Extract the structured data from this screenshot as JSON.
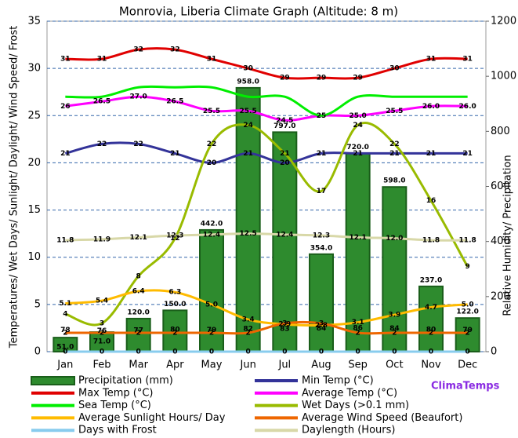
{
  "chart_data": {
    "type": "combo",
    "title": "Monrovia, Liberia Climate Graph (Altitude: 8 m)",
    "y_label": "Temperatures/ Wet Days/ Sunlight/ Daylight/ Wind Speed/ Frost",
    "y2_label": "Relative Humidity/ Precipitation",
    "brand": "ClimaTemps",
    "categories": [
      "Jan",
      "Feb",
      "Mar",
      "Apr",
      "May",
      "Jun",
      "Jul",
      "Aug",
      "Sep",
      "Oct",
      "Nov",
      "Dec"
    ],
    "ylim": [
      0,
      35
    ],
    "yticks": [
      0,
      5,
      10,
      15,
      20,
      25,
      30,
      35
    ],
    "y2lim": [
      0,
      1200
    ],
    "y2ticks": [
      0,
      200,
      400,
      600,
      800,
      1000,
      1200
    ],
    "grid": true,
    "series": [
      {
        "name": "Precipitation (mm)",
        "kind": "bar",
        "axis": "y2",
        "color": "#2e8b2e",
        "values": [
          51,
          71,
          120,
          150,
          442,
          958,
          797,
          354,
          720,
          598,
          237,
          122
        ],
        "value_labels": [
          "51.0",
          "71.0",
          "120.0",
          "150.0",
          "442.0",
          "958.0",
          "797.0",
          "354.0",
          "720.0",
          "598.0",
          "237.0",
          "122.0"
        ]
      },
      {
        "name": "Min Temp (°C)",
        "kind": "line",
        "color": "#333399",
        "values": [
          21,
          22,
          22,
          21,
          20,
          21,
          20,
          21,
          21,
          21,
          21,
          21
        ]
      },
      {
        "name": "Max Temp (°C)",
        "kind": "line",
        "color": "#e00000",
        "values": [
          31,
          31,
          32,
          32,
          31,
          30,
          29,
          29,
          29,
          30,
          31,
          31
        ]
      },
      {
        "name": "Average Temp (°C)",
        "kind": "line",
        "color": "#ff00ff",
        "values": [
          26,
          26.5,
          27,
          26.5,
          25.5,
          25.5,
          24.5,
          25,
          25,
          25.5,
          26,
          26
        ],
        "value_labels": [
          "26",
          "26.5",
          "27.0",
          "26.5",
          "25.5",
          "25.5",
          "24.5",
          "25",
          "25.0",
          "25.5",
          "26.0",
          "26.0"
        ]
      },
      {
        "name": "Sea Temp (°C)",
        "kind": "line",
        "color": "#00ee00",
        "show_labels": false,
        "values": [
          27,
          27,
          28,
          28,
          28,
          27,
          27,
          25,
          27,
          27,
          27,
          27
        ]
      },
      {
        "name": "Wet Days (>0.1 mm)",
        "kind": "line",
        "color": "#99bb00",
        "values": [
          4,
          3,
          8,
          12,
          22,
          24,
          21,
          17,
          24,
          22,
          16,
          9
        ]
      },
      {
        "name": "Average Sunlight Hours/ Day",
        "kind": "line",
        "color": "#ffbb00",
        "values": [
          5.1,
          5.4,
          6.4,
          6.3,
          5.0,
          3.4,
          2.9,
          2.8,
          3.1,
          3.9,
          4.7,
          5.0
        ],
        "value_labels": [
          "5.1",
          "5.4",
          "6.4",
          "6.3",
          "5.0",
          "3.4",
          "2.9",
          "2.8",
          "3.1",
          "3.9",
          "4.7",
          "5.0"
        ]
      },
      {
        "name": "Average Wind Speed (Beaufort)",
        "kind": "line",
        "color": "#ee6600",
        "values": [
          2,
          2,
          2,
          2,
          2,
          2,
          3,
          3,
          2,
          2,
          2,
          2
        ]
      },
      {
        "name": "Days with Frost",
        "kind": "line",
        "color": "#88ccee",
        "values": [
          0,
          0,
          0,
          0,
          0,
          0,
          0,
          0,
          0,
          0,
          0,
          0
        ]
      },
      {
        "name": "Daylength (Hours)",
        "kind": "line",
        "color": "#d8d8a8",
        "values": [
          11.8,
          11.9,
          12.1,
          12.3,
          12.4,
          12.5,
          12.4,
          12.3,
          12.1,
          12.0,
          11.8,
          11.8
        ],
        "value_labels": [
          "11.8",
          "11.9",
          "12.1",
          "12.3",
          "12.4",
          "12.5",
          "12.4",
          "12.3",
          "12.1",
          "12.0",
          "11.8",
          "11.8"
        ]
      }
    ],
    "humidity": {
      "axis": "y2",
      "values": [
        78,
        76,
        77,
        80,
        79,
        82,
        83,
        84,
        86,
        84,
        80,
        79
      ]
    }
  }
}
